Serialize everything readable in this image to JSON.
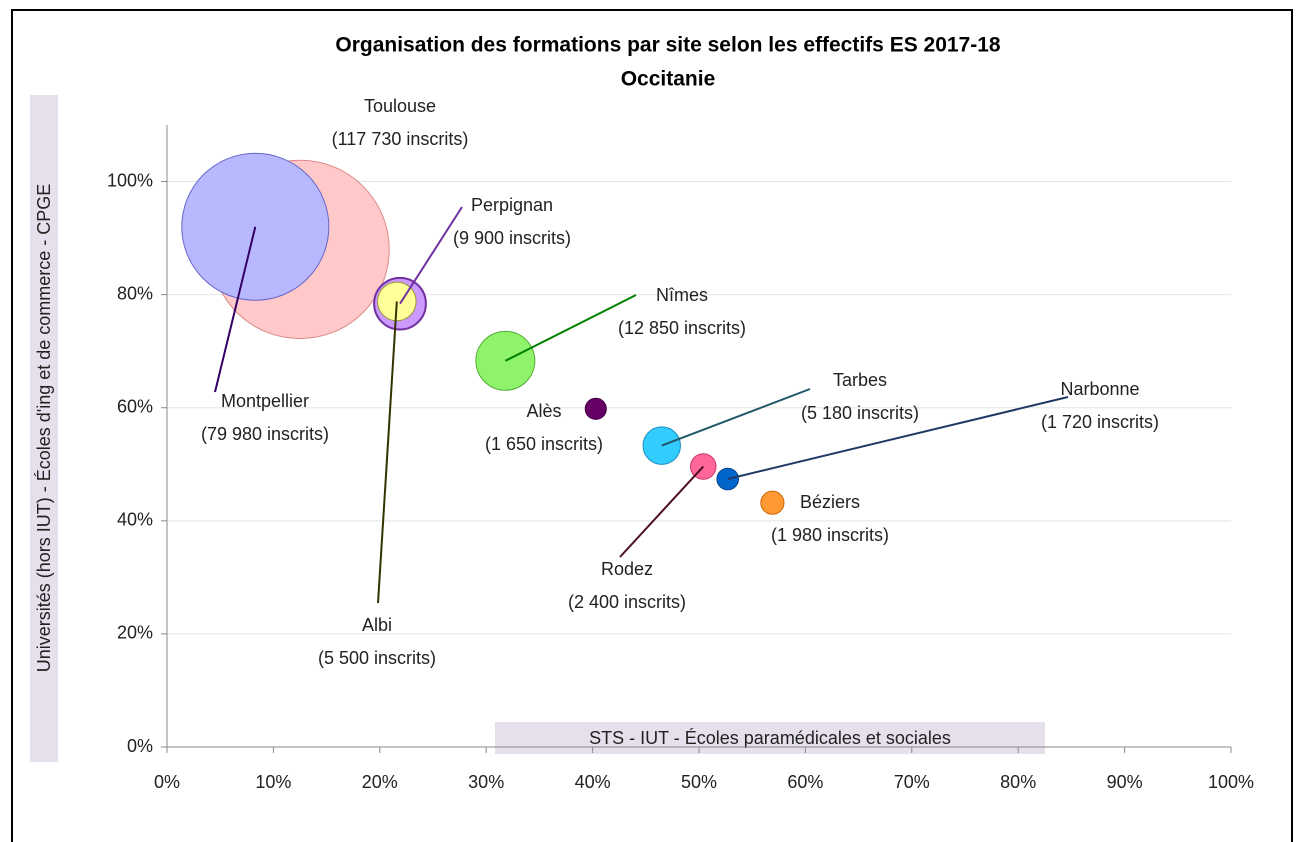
{
  "chart_data": {
    "type": "bubble",
    "title": "Organisation des formations par site selon les effectifs ES 2017-18",
    "subtitle": "Occitanie",
    "x_label": "STS - IUT - Écoles paramédicales et sociales",
    "y_label": "Universités (hors IUT) - Écoles d'ing et de commerce - CPGE",
    "xlim": [
      0,
      100
    ],
    "ylim": [
      0,
      110
    ],
    "xticks": [
      {
        "value": 0,
        "label": "0%"
      },
      {
        "value": 10,
        "label": "10%"
      },
      {
        "value": 20,
        "label": "20%"
      },
      {
        "value": 30,
        "label": "30%"
      },
      {
        "value": 40,
        "label": "40%"
      },
      {
        "value": 50,
        "label": "50%"
      },
      {
        "value": 60,
        "label": "60%"
      },
      {
        "value": 70,
        "label": "70%"
      },
      {
        "value": 80,
        "label": "80%"
      },
      {
        "value": 90,
        "label": "90%"
      },
      {
        "value": 100,
        "label": "100%"
      }
    ],
    "yticks": [
      {
        "value": 0,
        "label": "0%"
      },
      {
        "value": 20,
        "label": "20%"
      },
      {
        "value": 40,
        "label": "40%"
      },
      {
        "value": 60,
        "label": "60%"
      },
      {
        "value": 80,
        "label": "80%"
      },
      {
        "value": 100,
        "label": "100%"
      }
    ],
    "grid": true,
    "points": [
      {
        "name": "Toulouse",
        "x": 12.5,
        "y": 88,
        "size": 117730,
        "size_label": "(117 730 inscrits)",
        "color": "#ffc9c9"
      },
      {
        "name": "Montpellier",
        "x": 8.3,
        "y": 92,
        "size": 79980,
        "size_label": "(79 980 inscrits)",
        "color": "#b8b8ff"
      },
      {
        "name": "Perpignan",
        "x": 21.9,
        "y": 78.4,
        "size": 9900,
        "size_label": "(9 900 inscrits)",
        "color": "#cc99ff"
      },
      {
        "name": "Albi",
        "x": 21.6,
        "y": 78.8,
        "size": 5500,
        "size_label": "(5 500 inscrits)",
        "color": "#ffff99"
      },
      {
        "name": "Nîmes",
        "x": 31.8,
        "y": 68.3,
        "size": 12850,
        "size_label": "(12 850 inscrits)",
        "color": "#8ef36a"
      },
      {
        "name": "Alès",
        "x": 40.3,
        "y": 59.8,
        "size": 1650,
        "size_label": "(1 650 inscrits)",
        "color": "#660066"
      },
      {
        "name": "Tarbes",
        "x": 46.5,
        "y": 53.3,
        "size": 5180,
        "size_label": "(5 180 inscrits)",
        "color": "#33ccff"
      },
      {
        "name": "Rodez",
        "x": 50.4,
        "y": 49.6,
        "size": 2400,
        "size_label": "(2 400 inscrits)",
        "color": "#ff6699"
      },
      {
        "name": "Narbonne",
        "x": 52.7,
        "y": 47.4,
        "size": 1720,
        "size_label": "(1 720 inscrits)",
        "color": "#0066cc"
      },
      {
        "name": "Béziers",
        "x": 56.9,
        "y": 43.2,
        "size": 1980,
        "size_label": "(1 980 inscrits)",
        "color": "#ff9933"
      }
    ]
  }
}
